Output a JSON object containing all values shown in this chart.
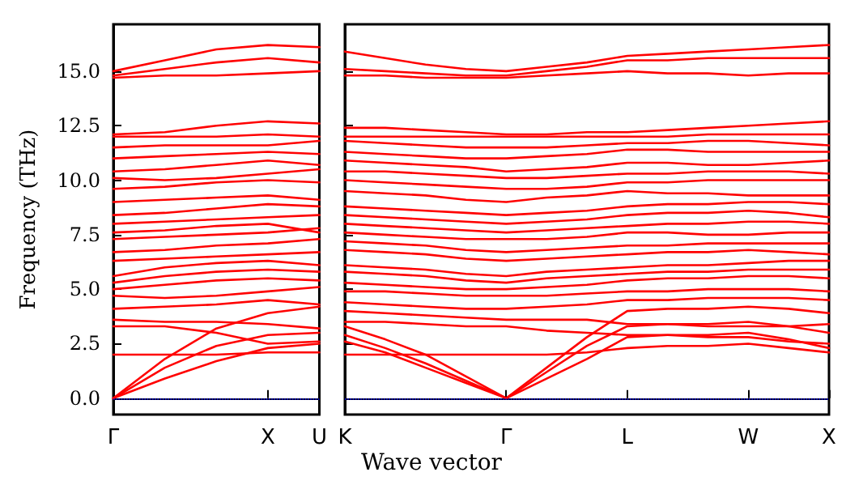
{
  "chart_data": [
    {
      "type": "line",
      "ylabel": "Frequency (THz)",
      "categories": [
        "Γ",
        null,
        null,
        "X",
        "U"
      ],
      "ylim": [
        -0.75,
        17.15
      ],
      "yticks": [
        {
          "value": 0,
          "label": "0.0"
        },
        {
          "value": 2.5,
          "label": "2.5"
        },
        {
          "value": 5,
          "label": "5.0"
        },
        {
          "value": 7.5,
          "label": "7.5"
        },
        {
          "value": 10,
          "label": "10.0"
        },
        {
          "value": 12.5,
          "label": "12.5"
        },
        {
          "value": 15,
          "label": "15.0"
        }
      ],
      "marker": "none",
      "line_style": "solid",
      "ref_lines": [
        {
          "axis": "y",
          "value": 0,
          "color": "#0000ff",
          "line_style": "dotted"
        }
      ],
      "series": [
        {
          "color": "#ff0000",
          "values": [
            0,
            0.9,
            1.7,
            2.3,
            2.5
          ]
        },
        {
          "color": "#ff0000",
          "values": [
            0,
            1.4,
            2.4,
            2.9,
            3.0
          ]
        },
        {
          "color": "#ff0000",
          "values": [
            0,
            1.8,
            3.2,
            3.9,
            4.2
          ]
        },
        {
          "color": "#ff0000",
          "values": [
            2.0,
            2.0,
            2.0,
            2.1,
            2.1
          ]
        },
        {
          "color": "#ff0000",
          "values": [
            3.3,
            3.3,
            3.0,
            2.5,
            2.6
          ]
        },
        {
          "color": "#ff0000",
          "values": [
            3.6,
            3.5,
            3.5,
            3.4,
            3.2
          ]
        },
        {
          "color": "#ff0000",
          "values": [
            4.1,
            4.2,
            4.3,
            4.5,
            4.3
          ]
        },
        {
          "color": "#ff0000",
          "values": [
            4.7,
            4.6,
            4.7,
            4.9,
            5.1
          ]
        },
        {
          "color": "#ff0000",
          "values": [
            5.0,
            5.2,
            5.4,
            5.5,
            5.4
          ]
        },
        {
          "color": "#ff0000",
          "values": [
            5.3,
            5.6,
            5.8,
            5.9,
            5.8
          ]
        },
        {
          "color": "#ff0000",
          "values": [
            5.6,
            6.0,
            6.2,
            6.3,
            6.1
          ]
        },
        {
          "color": "#ff0000",
          "values": [
            6.3,
            6.4,
            6.5,
            6.6,
            6.7
          ]
        },
        {
          "color": "#ff0000",
          "values": [
            6.7,
            6.8,
            7.0,
            7.1,
            7.3
          ]
        },
        {
          "color": "#ff0000",
          "values": [
            7.3,
            7.4,
            7.5,
            7.6,
            7.8
          ]
        },
        {
          "color": "#ff0000",
          "values": [
            7.6,
            7.7,
            7.9,
            8.0,
            7.6
          ]
        },
        {
          "color": "#ff0000",
          "values": [
            8.0,
            8.1,
            8.2,
            8.3,
            8.4
          ]
        },
        {
          "color": "#ff0000",
          "values": [
            8.4,
            8.5,
            8.7,
            8.9,
            8.8
          ]
        },
        {
          "color": "#ff0000",
          "values": [
            9.0,
            9.1,
            9.2,
            9.3,
            9.1
          ]
        },
        {
          "color": "#ff0000",
          "values": [
            9.6,
            9.7,
            9.9,
            10.0,
            9.9
          ]
        },
        {
          "color": "#ff0000",
          "values": [
            10.1,
            10.0,
            10.1,
            10.3,
            10.5
          ]
        },
        {
          "color": "#ff0000",
          "values": [
            10.4,
            10.5,
            10.7,
            10.9,
            10.7
          ]
        },
        {
          "color": "#ff0000",
          "values": [
            11.0,
            11.1,
            11.2,
            11.3,
            11.2
          ]
        },
        {
          "color": "#ff0000",
          "values": [
            11.5,
            11.6,
            11.6,
            11.6,
            11.8
          ]
        },
        {
          "color": "#ff0000",
          "values": [
            12.0,
            12.0,
            12.0,
            12.1,
            12.0
          ]
        },
        {
          "color": "#ff0000",
          "values": [
            12.1,
            12.2,
            12.5,
            12.7,
            12.6
          ]
        },
        {
          "color": "#ff0000",
          "values": [
            14.7,
            14.8,
            14.8,
            14.9,
            15.0
          ]
        },
        {
          "color": "#ff0000",
          "values": [
            14.8,
            15.1,
            15.4,
            15.6,
            15.4
          ]
        },
        {
          "color": "#ff0000",
          "values": [
            15.0,
            15.5,
            16.0,
            16.2,
            16.1
          ]
        }
      ]
    },
    {
      "type": "line",
      "xlabel": "Wave vector",
      "categories": [
        "K",
        null,
        null,
        null,
        "Γ",
        null,
        null,
        "L",
        null,
        null,
        "W",
        null,
        "X"
      ],
      "ylim": [
        -0.75,
        17.15
      ],
      "yticks": [
        {
          "value": 0,
          "label": null
        },
        {
          "value": 2.5,
          "label": null
        },
        {
          "value": 5,
          "label": null
        },
        {
          "value": 7.5,
          "label": null
        },
        {
          "value": 10,
          "label": null
        },
        {
          "value": 12.5,
          "label": null
        },
        {
          "value": 15,
          "label": null
        }
      ],
      "tick_labels": "x",
      "marker": "none",
      "line_style": "solid",
      "ref_lines": [
        {
          "axis": "y",
          "value": 0,
          "color": "#0000ff",
          "line_style": "dotted"
        }
      ],
      "series": [
        {
          "color": "#ff0000",
          "values": [
            2.6,
            2.1,
            1.4,
            0.7,
            0,
            0.9,
            1.8,
            2.8,
            2.9,
            2.9,
            3.0,
            2.7,
            2.3
          ]
        },
        {
          "color": "#ff0000",
          "values": [
            2.9,
            2.3,
            1.6,
            0.8,
            0,
            1.2,
            2.4,
            3.3,
            3.4,
            3.4,
            3.5,
            3.3,
            3.0
          ]
        },
        {
          "color": "#ff0000",
          "values": [
            3.3,
            2.7,
            2.0,
            1.0,
            0,
            1.4,
            2.8,
            4.0,
            4.1,
            4.1,
            4.2,
            4.1,
            3.9
          ]
        },
        {
          "color": "#ff0000",
          "values": [
            2.0,
            2.0,
            2.0,
            2.0,
            2.0,
            2.0,
            2.1,
            2.3,
            2.4,
            2.4,
            2.5,
            2.3,
            2.1
          ]
        },
        {
          "color": "#ff0000",
          "values": [
            3.5,
            3.5,
            3.4,
            3.3,
            3.3,
            3.1,
            3.0,
            2.9,
            2.9,
            2.8,
            2.8,
            2.6,
            2.5
          ]
        },
        {
          "color": "#ff0000",
          "values": [
            4.0,
            3.9,
            3.8,
            3.7,
            3.6,
            3.6,
            3.6,
            3.4,
            3.4,
            3.3,
            3.3,
            3.3,
            3.4
          ]
        },
        {
          "color": "#ff0000",
          "values": [
            4.4,
            4.3,
            4.2,
            4.1,
            4.1,
            4.2,
            4.3,
            4.5,
            4.5,
            4.6,
            4.6,
            4.6,
            4.5
          ]
        },
        {
          "color": "#ff0000",
          "values": [
            4.9,
            4.9,
            4.8,
            4.7,
            4.7,
            4.7,
            4.8,
            4.9,
            4.9,
            5.0,
            5.0,
            5.0,
            4.9
          ]
        },
        {
          "color": "#ff0000",
          "values": [
            5.3,
            5.2,
            5.1,
            5.0,
            5.0,
            5.1,
            5.2,
            5.4,
            5.5,
            5.5,
            5.6,
            5.6,
            5.5
          ]
        },
        {
          "color": "#ff0000",
          "values": [
            5.8,
            5.7,
            5.6,
            5.4,
            5.3,
            5.5,
            5.6,
            5.7,
            5.8,
            5.8,
            5.9,
            5.9,
            5.9
          ]
        },
        {
          "color": "#ff0000",
          "values": [
            6.1,
            6.0,
            5.9,
            5.7,
            5.6,
            5.8,
            5.9,
            6.0,
            6.1,
            6.1,
            6.2,
            6.3,
            6.3
          ]
        },
        {
          "color": "#ff0000",
          "values": [
            6.8,
            6.7,
            6.6,
            6.4,
            6.3,
            6.4,
            6.5,
            6.6,
            6.7,
            6.7,
            6.8,
            6.7,
            6.6
          ]
        },
        {
          "color": "#ff0000",
          "values": [
            7.2,
            7.1,
            7.0,
            6.8,
            6.7,
            6.8,
            6.9,
            7.0,
            7.0,
            7.1,
            7.1,
            7.1,
            7.1
          ]
        },
        {
          "color": "#ff0000",
          "values": [
            7.6,
            7.5,
            7.4,
            7.3,
            7.3,
            7.3,
            7.4,
            7.6,
            7.6,
            7.5,
            7.5,
            7.6,
            7.6
          ]
        },
        {
          "color": "#ff0000",
          "values": [
            8.0,
            7.9,
            7.8,
            7.7,
            7.6,
            7.7,
            7.8,
            7.9,
            8.0,
            8.0,
            8.1,
            8.1,
            8.0
          ]
        },
        {
          "color": "#ff0000",
          "values": [
            8.4,
            8.3,
            8.2,
            8.1,
            8.0,
            8.1,
            8.2,
            8.4,
            8.5,
            8.5,
            8.6,
            8.5,
            8.3
          ]
        },
        {
          "color": "#ff0000",
          "values": [
            8.8,
            8.7,
            8.6,
            8.5,
            8.4,
            8.5,
            8.6,
            8.8,
            8.9,
            8.9,
            9.0,
            9.0,
            8.9
          ]
        },
        {
          "color": "#ff0000",
          "values": [
            9.5,
            9.4,
            9.3,
            9.1,
            9.0,
            9.2,
            9.3,
            9.5,
            9.4,
            9.4,
            9.3,
            9.3,
            9.3
          ]
        },
        {
          "color": "#ff0000",
          "values": [
            10.0,
            9.9,
            9.8,
            9.7,
            9.6,
            9.6,
            9.7,
            9.9,
            9.9,
            10.0,
            10.0,
            10.0,
            10.0
          ]
        },
        {
          "color": "#ff0000",
          "values": [
            10.4,
            10.4,
            10.3,
            10.2,
            10.1,
            10.1,
            10.2,
            10.3,
            10.3,
            10.4,
            10.4,
            10.4,
            10.3
          ]
        },
        {
          "color": "#ff0000",
          "values": [
            10.9,
            10.8,
            10.7,
            10.6,
            10.4,
            10.5,
            10.6,
            10.8,
            10.8,
            10.7,
            10.7,
            10.8,
            10.9
          ]
        },
        {
          "color": "#ff0000",
          "values": [
            11.3,
            11.2,
            11.1,
            11.0,
            11.0,
            11.1,
            11.2,
            11.4,
            11.4,
            11.3,
            11.3,
            11.3,
            11.3
          ]
        },
        {
          "color": "#ff0000",
          "values": [
            11.8,
            11.7,
            11.6,
            11.5,
            11.5,
            11.5,
            11.6,
            11.7,
            11.7,
            11.8,
            11.8,
            11.7,
            11.6
          ]
        },
        {
          "color": "#ff0000",
          "values": [
            12.0,
            12.0,
            12.0,
            12.0,
            12.0,
            12.0,
            12.0,
            12.0,
            12.0,
            12.1,
            12.1,
            12.1,
            12.1
          ]
        },
        {
          "color": "#ff0000",
          "values": [
            12.4,
            12.4,
            12.3,
            12.2,
            12.1,
            12.1,
            12.2,
            12.2,
            12.3,
            12.4,
            12.5,
            12.6,
            12.7
          ]
        },
        {
          "color": "#ff0000",
          "values": [
            14.8,
            14.8,
            14.7,
            14.7,
            14.7,
            14.8,
            14.9,
            15.0,
            14.9,
            14.9,
            14.8,
            14.9,
            14.9
          ]
        },
        {
          "color": "#ff0000",
          "values": [
            15.1,
            15.0,
            14.9,
            14.8,
            14.8,
            15.0,
            15.2,
            15.5,
            15.5,
            15.6,
            15.6,
            15.6,
            15.6
          ]
        },
        {
          "color": "#ff0000",
          "values": [
            15.9,
            15.6,
            15.3,
            15.1,
            15.0,
            15.2,
            15.4,
            15.7,
            15.8,
            15.9,
            16.0,
            16.1,
            16.2
          ]
        }
      ]
    }
  ]
}
